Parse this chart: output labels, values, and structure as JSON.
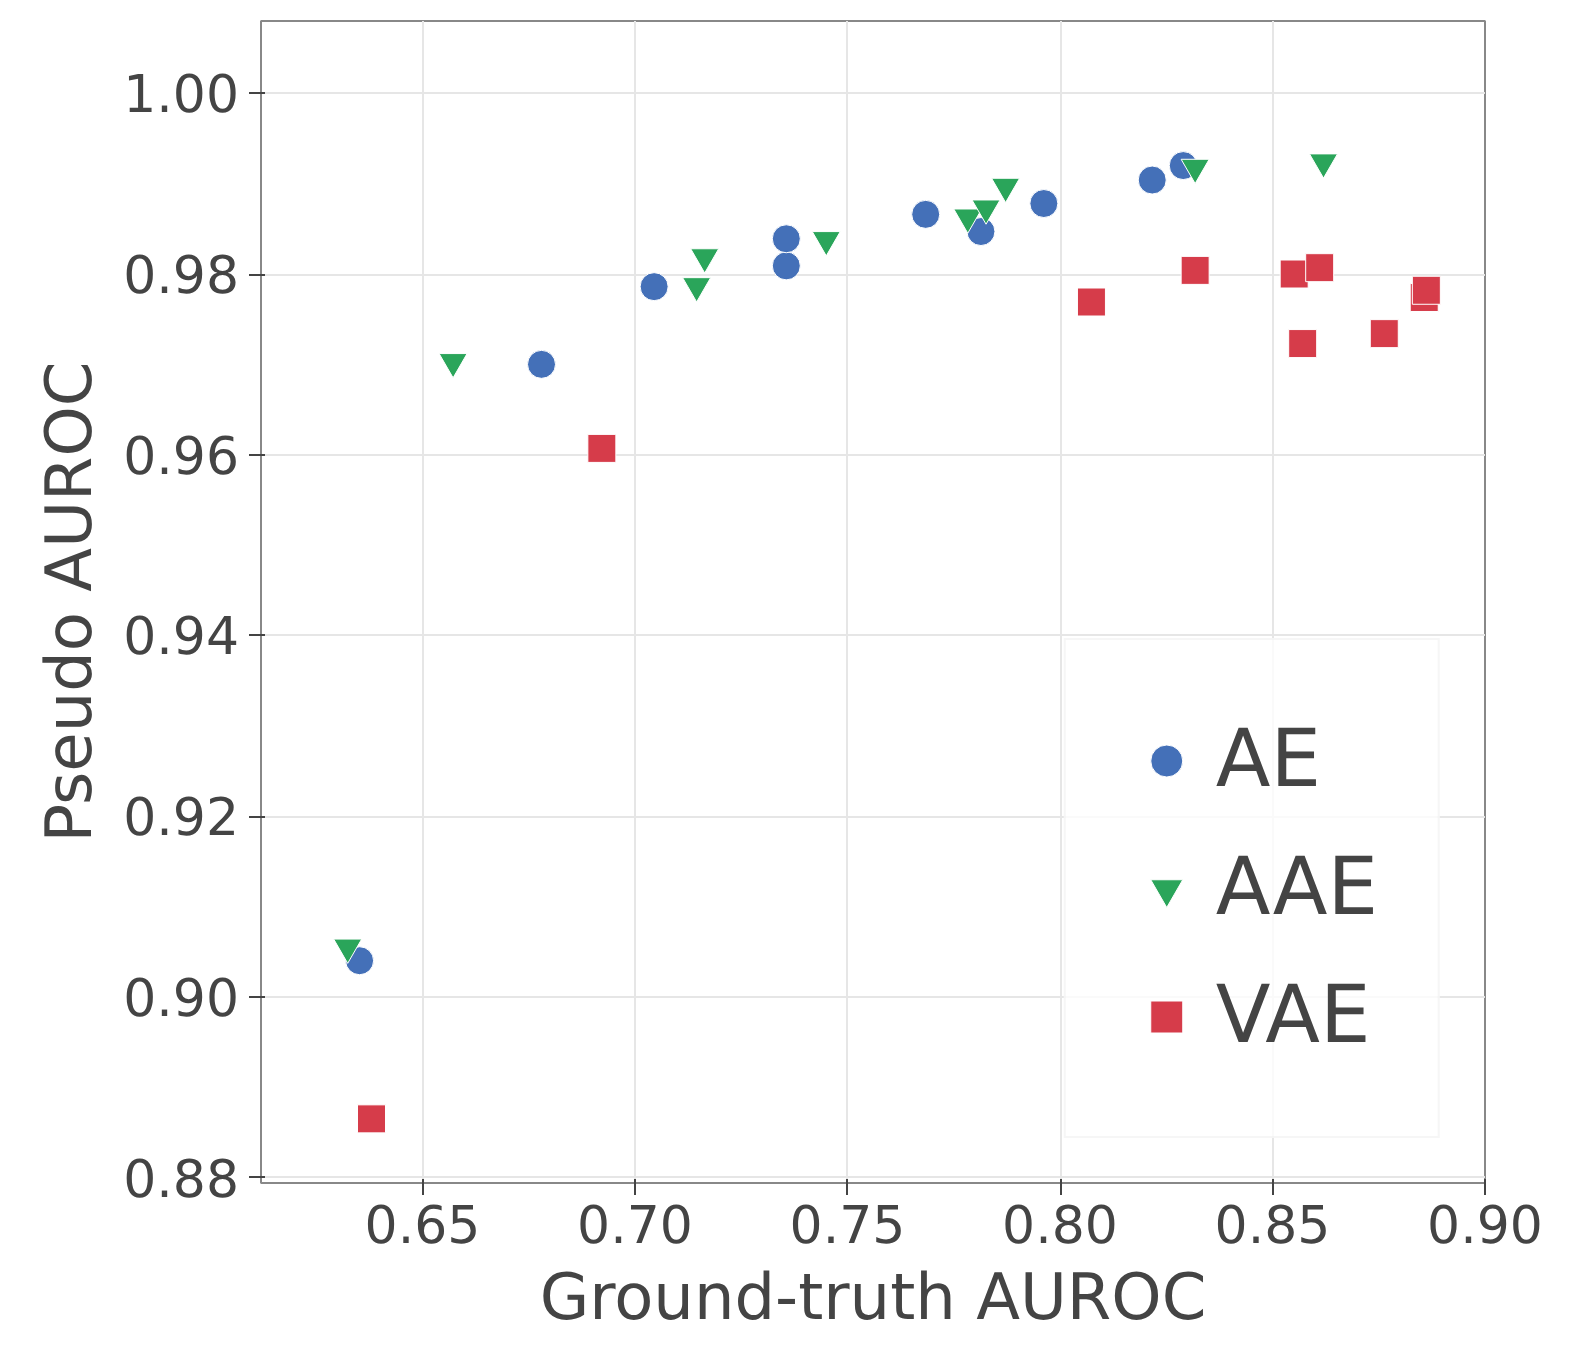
{
  "chart_data": {
    "type": "scatter",
    "xlabel": "Ground-truth AUROC",
    "ylabel": "Pseudo AUROC",
    "xlim": [
      0.612,
      0.9
    ],
    "ylim": [
      0.8794,
      1.008
    ],
    "xticks": [
      {
        "value": 0.65,
        "label": "0.65"
      },
      {
        "value": 0.7,
        "label": "0.70"
      },
      {
        "value": 0.75,
        "label": "0.75"
      },
      {
        "value": 0.8,
        "label": "0.80"
      },
      {
        "value": 0.85,
        "label": "0.85"
      },
      {
        "value": 0.9,
        "label": "0.90"
      }
    ],
    "yticks": [
      {
        "value": 0.88,
        "label": "0.88"
      },
      {
        "value": 0.9,
        "label": "0.90"
      },
      {
        "value": 0.92,
        "label": "0.92"
      },
      {
        "value": 0.94,
        "label": "0.94"
      },
      {
        "value": 0.96,
        "label": "0.96"
      },
      {
        "value": 0.98,
        "label": "0.98"
      },
      {
        "value": 1.0,
        "label": "1.00"
      }
    ],
    "grid": true,
    "legend": "bottom right",
    "series": [
      {
        "name": "AE",
        "color": "#4470b8",
        "marker": "circle",
        "x": [
          0.6352,
          0.678,
          0.7045,
          0.7356,
          0.7356,
          0.7684,
          0.7814,
          0.7962,
          0.8217,
          0.829
        ],
        "values": [
          0.904,
          0.97,
          0.9786,
          0.9809,
          0.9839,
          0.9866,
          0.9847,
          0.9878,
          0.9904,
          0.992
        ]
      },
      {
        "name": "AAE",
        "color": "#2aa55a",
        "marker": "triangle",
        "x": [
          0.6324,
          0.6572,
          0.7164,
          0.7145,
          0.745,
          0.7783,
          0.7826,
          0.7872,
          0.8318,
          0.862
        ],
        "values": [
          0.9055,
          0.9703,
          0.9819,
          0.9787,
          0.9838,
          0.9863,
          0.9873,
          0.9897,
          0.9918,
          0.9924
        ]
      },
      {
        "name": "VAE",
        "color": "#d63c4a",
        "marker": "square",
        "x": [
          0.638,
          0.6922,
          0.8074,
          0.8318,
          0.8551,
          0.8611,
          0.8571,
          0.8763,
          0.8857,
          0.8862
        ],
        "values": [
          0.8865,
          0.9607,
          0.9769,
          0.9804,
          0.98,
          0.9807,
          0.9723,
          0.9734,
          0.9774,
          0.9782
        ]
      }
    ]
  }
}
